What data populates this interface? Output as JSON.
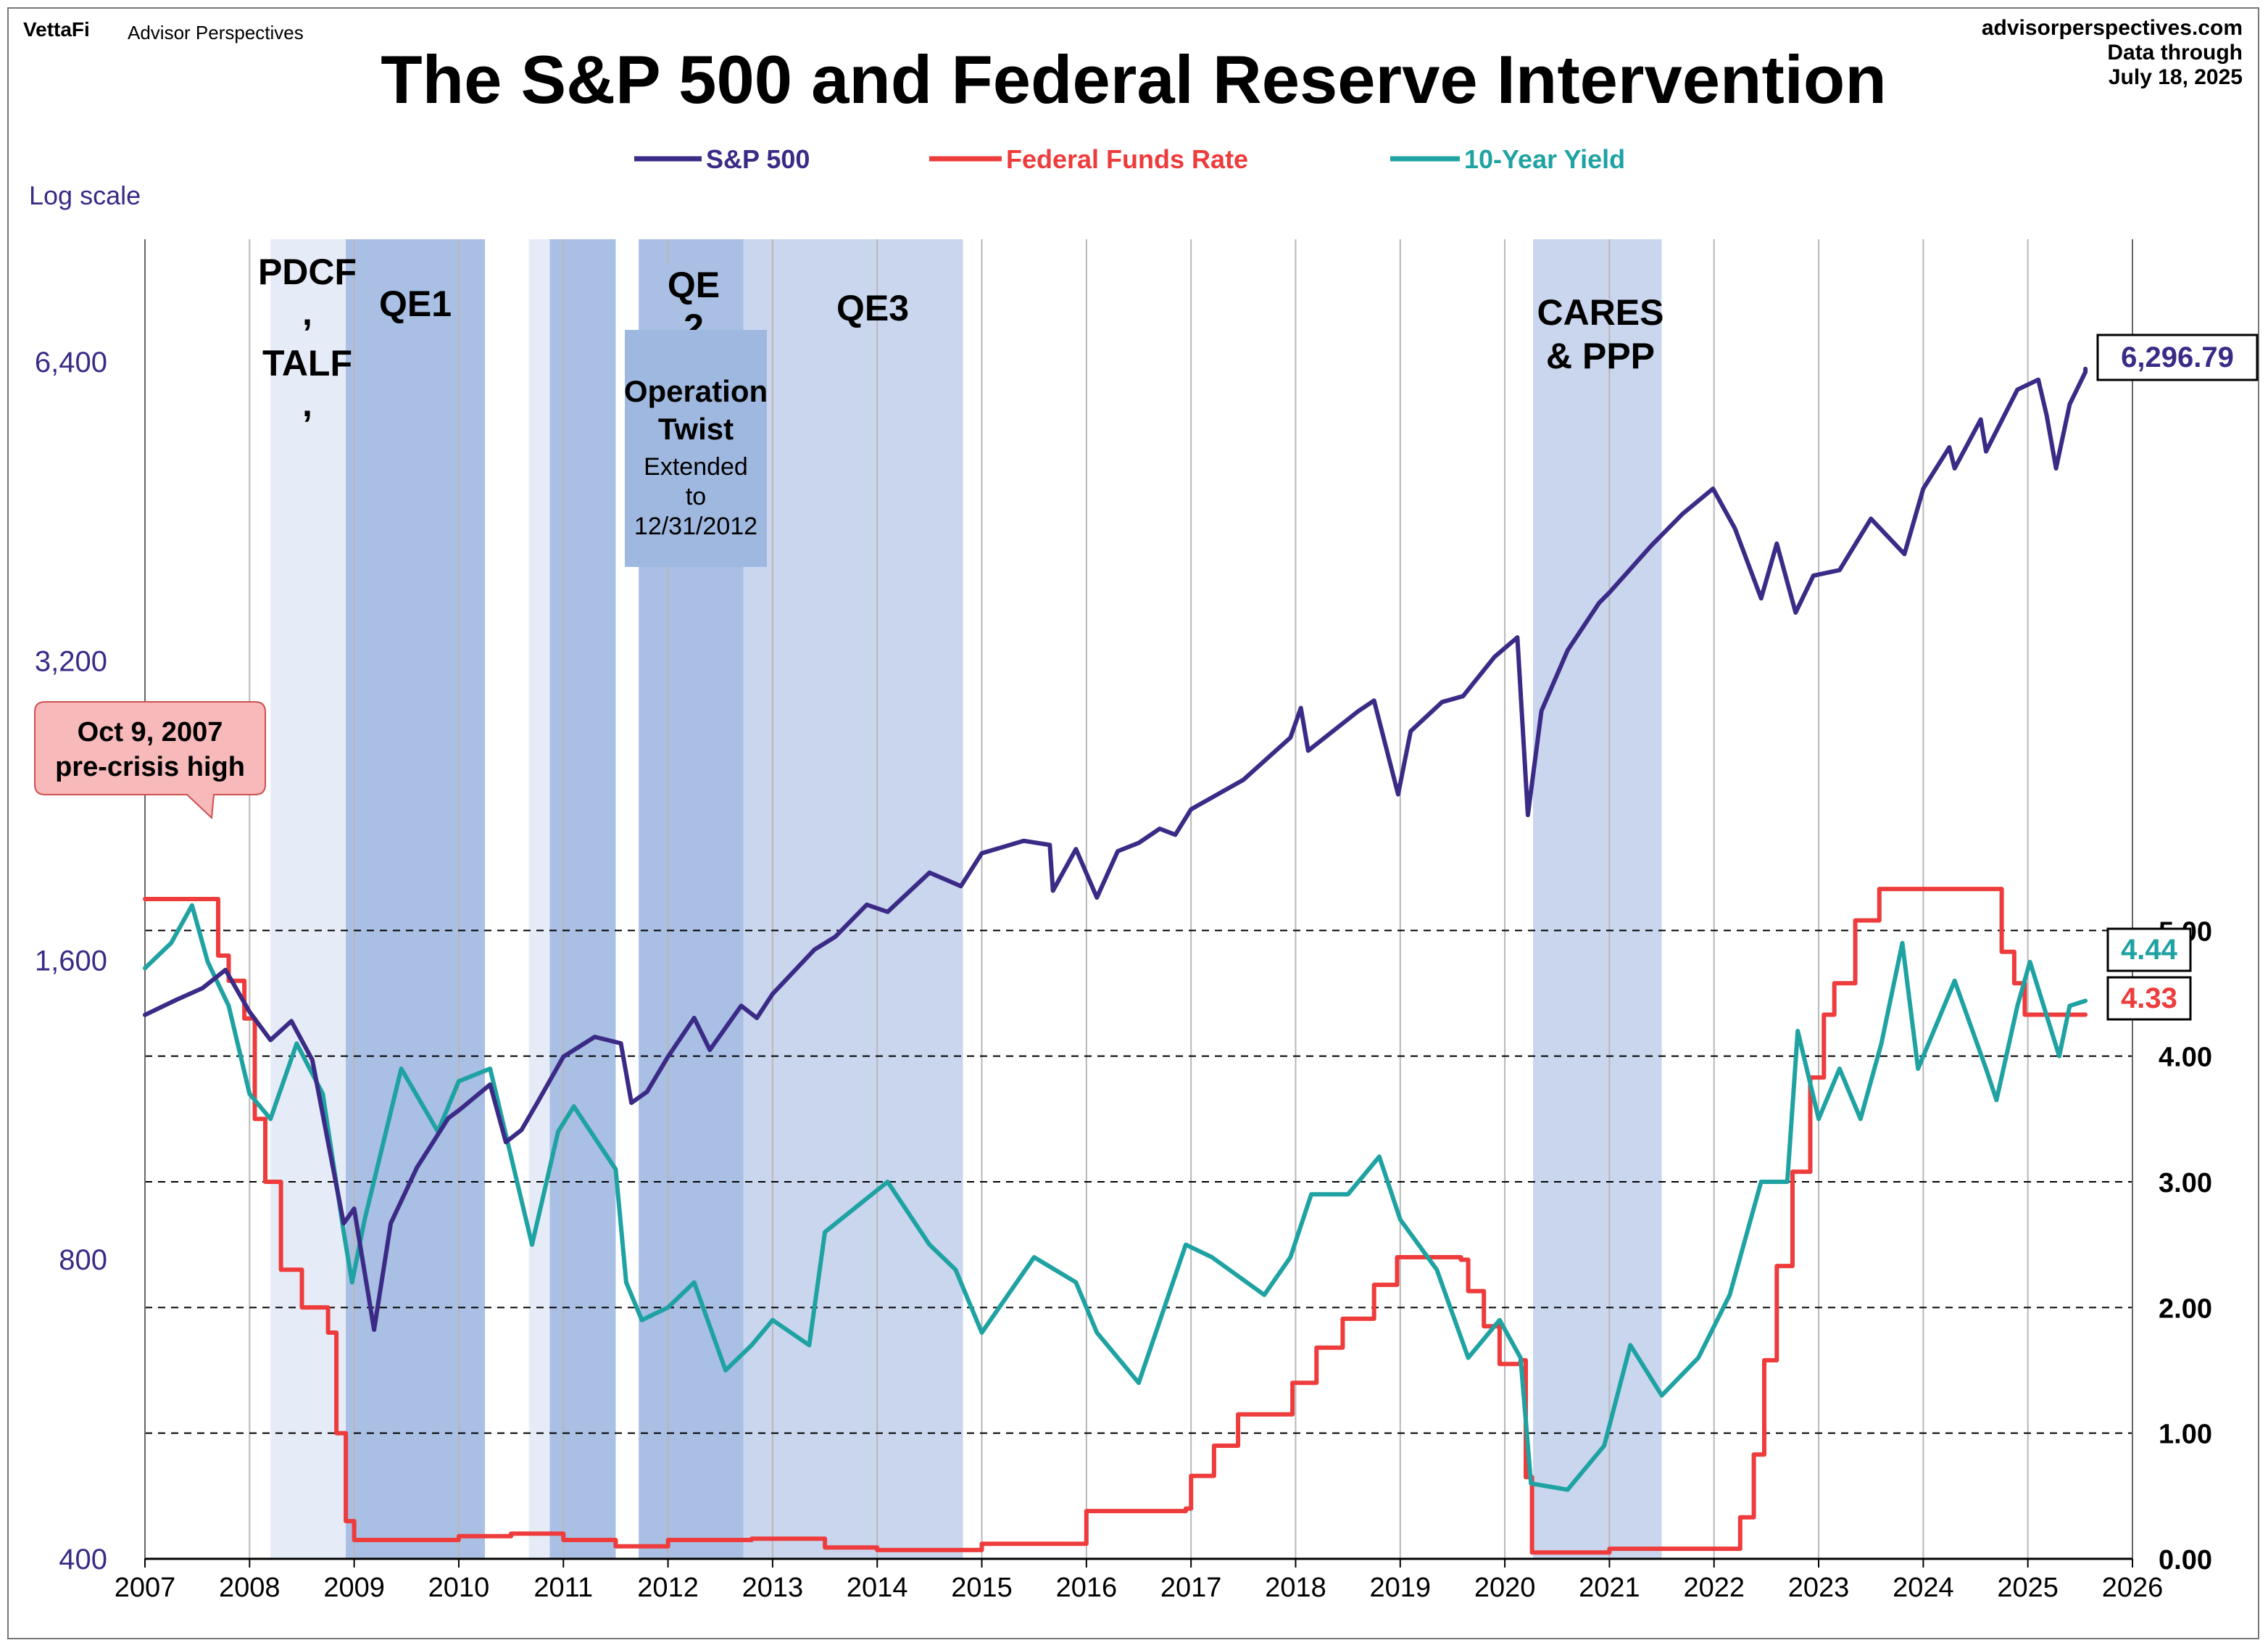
{
  "brand": {
    "logo_text": "VettaFi",
    "site_name": "Advisor Perspectives"
  },
  "header": {
    "title": "The S&P 500 and Federal Reserve Intervention",
    "source_site": "advisorperspectives.com",
    "data_through_label": "Data through",
    "data_through_date": "July 18, 2025"
  },
  "colors": {
    "sp500": "#3b2a86",
    "fed_funds": "#ee3b3b",
    "ten_year": "#1fa2a2",
    "shade_light": "#e6ecf7",
    "shade_mid": "#c9d6ee",
    "shade_dark": "#a9bfe3",
    "callout_fill": "#f7b9b9",
    "callout_border": "#d05050"
  },
  "chart_data": {
    "type": "line",
    "title": "The S&P 500 and Federal Reserve Intervention",
    "left_axis_note": "Log scale",
    "legend": [
      "S&P 500",
      "Federal Funds Rate",
      "10-Year Yield"
    ],
    "legend_position": "top-center",
    "x_range": [
      2007,
      2026
    ],
    "x_ticks": [
      "2007",
      "2008",
      "2009",
      "2010",
      "2011",
      "2012",
      "2013",
      "2014",
      "2015",
      "2016",
      "2017",
      "2018",
      "2019",
      "2020",
      "2021",
      "2022",
      "2023",
      "2024",
      "2025",
      "2026"
    ],
    "left_axis": {
      "scale": "log",
      "range": [
        400,
        8500
      ],
      "ticks": [
        400,
        800,
        1600,
        3200,
        6400
      ],
      "tick_labels": [
        "400",
        "800",
        "1,600",
        "3,200",
        "6,400"
      ]
    },
    "right_axis": {
      "scale": "linear",
      "range": [
        0,
        10.5
      ],
      "ticks": [
        0,
        1,
        2,
        3,
        4,
        5
      ],
      "tick_labels": [
        "0.00",
        "1.00",
        "2.00",
        "3.00",
        "4.00",
        "5.00"
      ],
      "gridlines_dashed": [
        1,
        2,
        3,
        4,
        5
      ]
    },
    "series": [
      {
        "name": "S&P 500",
        "axis": "left",
        "points": [
          [
            2007.0,
            1410
          ],
          [
            2007.3,
            1460
          ],
          [
            2007.55,
            1500
          ],
          [
            2007.77,
            1565
          ],
          [
            2008.0,
            1420
          ],
          [
            2008.2,
            1330
          ],
          [
            2008.4,
            1390
          ],
          [
            2008.6,
            1270
          ],
          [
            2008.75,
            1050
          ],
          [
            2008.9,
            870
          ],
          [
            2009.0,
            900
          ],
          [
            2009.19,
            680
          ],
          [
            2009.35,
            870
          ],
          [
            2009.6,
            990
          ],
          [
            2009.9,
            1110
          ],
          [
            2010.0,
            1130
          ],
          [
            2010.3,
            1200
          ],
          [
            2010.45,
            1050
          ],
          [
            2010.6,
            1080
          ],
          [
            2010.75,
            1150
          ],
          [
            2011.0,
            1280
          ],
          [
            2011.3,
            1340
          ],
          [
            2011.55,
            1320
          ],
          [
            2011.65,
            1150
          ],
          [
            2011.8,
            1180
          ],
          [
            2012.0,
            1280
          ],
          [
            2012.25,
            1400
          ],
          [
            2012.4,
            1300
          ],
          [
            2012.7,
            1440
          ],
          [
            2012.85,
            1400
          ],
          [
            2013.0,
            1480
          ],
          [
            2013.4,
            1640
          ],
          [
            2013.6,
            1690
          ],
          [
            2013.9,
            1820
          ],
          [
            2014.1,
            1790
          ],
          [
            2014.5,
            1960
          ],
          [
            2014.8,
            1900
          ],
          [
            2015.0,
            2050
          ],
          [
            2015.4,
            2110
          ],
          [
            2015.65,
            2090
          ],
          [
            2015.68,
            1880
          ],
          [
            2015.9,
            2070
          ],
          [
            2016.1,
            1850
          ],
          [
            2016.3,
            2060
          ],
          [
            2016.5,
            2100
          ],
          [
            2016.7,
            2170
          ],
          [
            2016.85,
            2140
          ],
          [
            2017.0,
            2270
          ],
          [
            2017.5,
            2430
          ],
          [
            2017.95,
            2680
          ],
          [
            2018.05,
            2870
          ],
          [
            2018.12,
            2600
          ],
          [
            2018.6,
            2850
          ],
          [
            2018.75,
            2920
          ],
          [
            2018.98,
            2350
          ],
          [
            2019.1,
            2720
          ],
          [
            2019.4,
            2910
          ],
          [
            2019.6,
            2950
          ],
          [
            2019.9,
            3230
          ],
          [
            2020.12,
            3380
          ],
          [
            2020.22,
            2240
          ],
          [
            2020.35,
            2850
          ],
          [
            2020.6,
            3280
          ],
          [
            2020.9,
            3660
          ],
          [
            2021.0,
            3750
          ],
          [
            2021.4,
            4180
          ],
          [
            2021.7,
            4500
          ],
          [
            2021.99,
            4770
          ],
          [
            2022.2,
            4350
          ],
          [
            2022.45,
            3700
          ],
          [
            2022.6,
            4200
          ],
          [
            2022.78,
            3580
          ],
          [
            2022.95,
            3900
          ],
          [
            2023.2,
            3950
          ],
          [
            2023.5,
            4450
          ],
          [
            2023.82,
            4100
          ],
          [
            2024.0,
            4770
          ],
          [
            2024.25,
            5250
          ],
          [
            2024.3,
            5000
          ],
          [
            2024.55,
            5600
          ],
          [
            2024.6,
            5200
          ],
          [
            2024.9,
            6000
          ],
          [
            2025.1,
            6140
          ],
          [
            2025.18,
            5650
          ],
          [
            2025.27,
            5000
          ],
          [
            2025.4,
            5800
          ],
          [
            2025.55,
            6250
          ],
          [
            2025.55,
            6296.79
          ]
        ]
      },
      {
        "name": "Federal Funds Rate",
        "axis": "right",
        "points": [
          [
            2007.0,
            5.25
          ],
          [
            2007.6,
            5.25
          ],
          [
            2007.7,
            4.8
          ],
          [
            2007.8,
            4.6
          ],
          [
            2007.95,
            4.3
          ],
          [
            2008.05,
            3.5
          ],
          [
            2008.15,
            3.0
          ],
          [
            2008.3,
            2.3
          ],
          [
            2008.5,
            2.0
          ],
          [
            2008.75,
            1.8
          ],
          [
            2008.83,
            1.0
          ],
          [
            2008.92,
            0.3
          ],
          [
            2009.0,
            0.15
          ],
          [
            2010.0,
            0.18
          ],
          [
            2010.5,
            0.2
          ],
          [
            2011.0,
            0.15
          ],
          [
            2011.5,
            0.1
          ],
          [
            2012.0,
            0.15
          ],
          [
            2012.8,
            0.16
          ],
          [
            2013.5,
            0.09
          ],
          [
            2014.0,
            0.07
          ],
          [
            2015.0,
            0.12
          ],
          [
            2015.98,
            0.12
          ],
          [
            2016.0,
            0.38
          ],
          [
            2016.95,
            0.4
          ],
          [
            2017.0,
            0.66
          ],
          [
            2017.22,
            0.9
          ],
          [
            2017.45,
            1.15
          ],
          [
            2017.97,
            1.4
          ],
          [
            2018.2,
            1.68
          ],
          [
            2018.45,
            1.91
          ],
          [
            2018.75,
            2.18
          ],
          [
            2018.97,
            2.4
          ],
          [
            2019.58,
            2.38
          ],
          [
            2019.65,
            2.13
          ],
          [
            2019.8,
            1.85
          ],
          [
            2019.95,
            1.55
          ],
          [
            2020.15,
            1.58
          ],
          [
            2020.2,
            0.65
          ],
          [
            2020.26,
            0.05
          ],
          [
            2021.0,
            0.08
          ],
          [
            2022.0,
            0.08
          ],
          [
            2022.25,
            0.33
          ],
          [
            2022.38,
            0.83
          ],
          [
            2022.48,
            1.58
          ],
          [
            2022.6,
            2.33
          ],
          [
            2022.75,
            3.08
          ],
          [
            2022.92,
            3.83
          ],
          [
            2023.05,
            4.33
          ],
          [
            2023.15,
            4.58
          ],
          [
            2023.35,
            5.08
          ],
          [
            2023.58,
            5.33
          ],
          [
            2024.7,
            5.33
          ],
          [
            2024.75,
            4.83
          ],
          [
            2024.87,
            4.58
          ],
          [
            2024.97,
            4.33
          ],
          [
            2025.55,
            4.33
          ]
        ]
      },
      {
        "name": "10-Year Yield",
        "axis": "right",
        "points": [
          [
            2007.0,
            4.7
          ],
          [
            2007.25,
            4.9
          ],
          [
            2007.45,
            5.2
          ],
          [
            2007.6,
            4.75
          ],
          [
            2007.8,
            4.4
          ],
          [
            2008.0,
            3.7
          ],
          [
            2008.2,
            3.5
          ],
          [
            2008.45,
            4.1
          ],
          [
            2008.7,
            3.7
          ],
          [
            2008.9,
            2.6
          ],
          [
            2008.98,
            2.2
          ],
          [
            2009.1,
            2.7
          ],
          [
            2009.45,
            3.9
          ],
          [
            2009.8,
            3.4
          ],
          [
            2010.0,
            3.8
          ],
          [
            2010.3,
            3.9
          ],
          [
            2010.7,
            2.5
          ],
          [
            2010.95,
            3.4
          ],
          [
            2011.1,
            3.6
          ],
          [
            2011.5,
            3.1
          ],
          [
            2011.6,
            2.2
          ],
          [
            2011.75,
            1.9
          ],
          [
            2012.0,
            2.0
          ],
          [
            2012.25,
            2.2
          ],
          [
            2012.55,
            1.5
          ],
          [
            2012.8,
            1.7
          ],
          [
            2013.0,
            1.9
          ],
          [
            2013.35,
            1.7
          ],
          [
            2013.5,
            2.6
          ],
          [
            2013.95,
            2.9
          ],
          [
            2014.1,
            3.0
          ],
          [
            2014.5,
            2.5
          ],
          [
            2014.75,
            2.3
          ],
          [
            2015.0,
            1.8
          ],
          [
            2015.5,
            2.4
          ],
          [
            2015.9,
            2.2
          ],
          [
            2016.1,
            1.8
          ],
          [
            2016.5,
            1.4
          ],
          [
            2016.95,
            2.5
          ],
          [
            2017.2,
            2.4
          ],
          [
            2017.7,
            2.1
          ],
          [
            2017.95,
            2.4
          ],
          [
            2018.15,
            2.9
          ],
          [
            2018.5,
            2.9
          ],
          [
            2018.8,
            3.2
          ],
          [
            2019.0,
            2.7
          ],
          [
            2019.35,
            2.3
          ],
          [
            2019.65,
            1.6
          ],
          [
            2019.95,
            1.9
          ],
          [
            2020.15,
            1.6
          ],
          [
            2020.25,
            0.6
          ],
          [
            2020.6,
            0.55
          ],
          [
            2020.95,
            0.9
          ],
          [
            2021.2,
            1.7
          ],
          [
            2021.5,
            1.3
          ],
          [
            2021.85,
            1.6
          ],
          [
            2022.15,
            2.1
          ],
          [
            2022.45,
            3.0
          ],
          [
            2022.7,
            3.0
          ],
          [
            2022.8,
            4.2
          ],
          [
            2023.0,
            3.5
          ],
          [
            2023.2,
            3.9
          ],
          [
            2023.4,
            3.5
          ],
          [
            2023.6,
            4.1
          ],
          [
            2023.8,
            4.9
          ],
          [
            2023.95,
            3.9
          ],
          [
            2024.3,
            4.6
          ],
          [
            2024.6,
            3.9
          ],
          [
            2024.7,
            3.65
          ],
          [
            2024.9,
            4.4
          ],
          [
            2025.02,
            4.75
          ],
          [
            2025.3,
            4.0
          ],
          [
            2025.4,
            4.4
          ],
          [
            2025.55,
            4.44
          ]
        ]
      }
    ],
    "end_labels": {
      "sp500": "6,296.79",
      "ten_year": "4.44",
      "fed_funds": "4.33"
    },
    "shaded_programs": [
      {
        "label": "PDCF, TALF,",
        "start": 2008.2,
        "end": 2008.92,
        "tone": "shade_light"
      },
      {
        "label": "QE1",
        "start": 2008.92,
        "end": 2010.25,
        "tone": "shade_dark"
      },
      {
        "label": "",
        "start": 2010.67,
        "end": 2010.87,
        "tone": "shade_light"
      },
      {
        "label": "QE2",
        "start": 2010.87,
        "end": 2011.5,
        "tone": "shade_dark"
      },
      {
        "label": "Operation Twist",
        "start": 2011.72,
        "end": 2012.72,
        "tone": "shade_dark"
      },
      {
        "label": "QE3",
        "start": 2012.72,
        "end": 2014.82,
        "tone": "shade_mid"
      },
      {
        "label": "CARES & PPP",
        "start": 2020.27,
        "end": 2021.5,
        "tone": "shade_mid"
      }
    ],
    "annotations": {
      "pdcf": "PDCF",
      "pdcf_comma": ",",
      "talf": "TALF",
      "talf_comma": ",",
      "qe1": "QE1",
      "qe2_line1": "QE",
      "qe2_line2": "2",
      "twist_line1": "Operation",
      "twist_line2": "Twist",
      "twist_line3": "Extended",
      "twist_line4": "to",
      "twist_line5": "12/31/2012",
      "qe3": "QE3",
      "cares_line1": "CARES",
      "cares_line2": "& PPP",
      "callout_line1": "Oct 9, 2007",
      "callout_line2": "pre-crisis high"
    }
  }
}
